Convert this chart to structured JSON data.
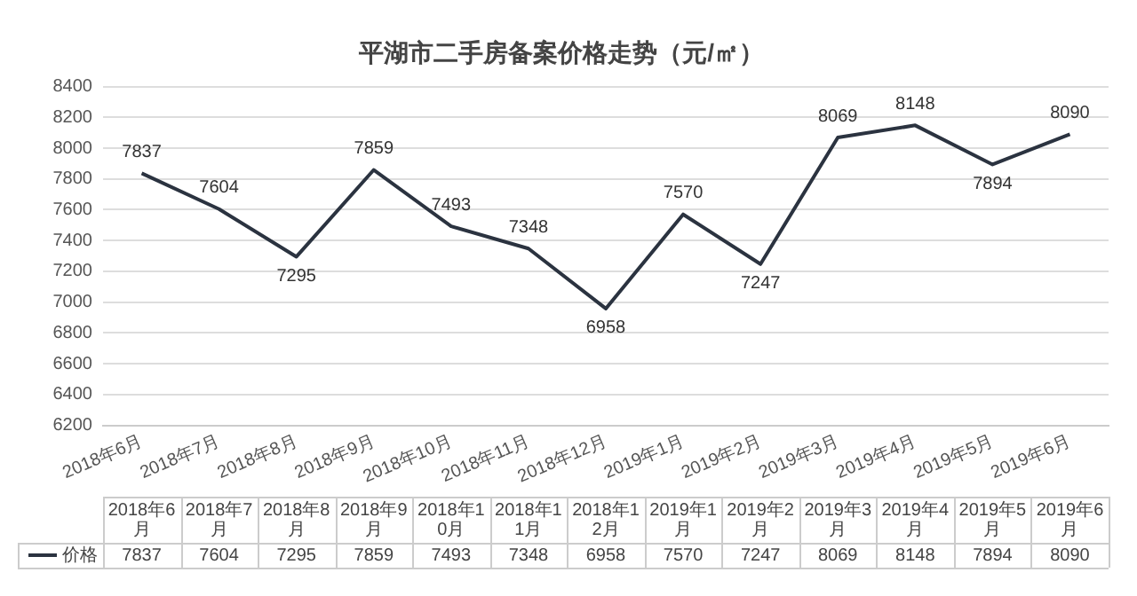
{
  "chart_data": {
    "type": "line",
    "title": "平湖市二手房备案价格走势（元/㎡）",
    "categories": [
      "2018年6月",
      "2018年7月",
      "2018年8月",
      "2018年9月",
      "2018年10月",
      "2018年11月",
      "2018年12月",
      "2019年1月",
      "2019年2月",
      "2019年3月",
      "2019年4月",
      "2019年5月",
      "2019年6月"
    ],
    "series": [
      {
        "name": "价格",
        "color": "#2b3340",
        "values": [
          7837,
          7604,
          7295,
          7859,
          7493,
          7348,
          6958,
          7570,
          7247,
          8069,
          8148,
          7894,
          8090
        ]
      }
    ],
    "annotations": [
      {
        "text": "7837",
        "x": "2018年6月",
        "y": 7837
      },
      {
        "text": "7604",
        "x": "2018年7月",
        "y": 7604
      },
      {
        "text": "7295",
        "x": "2018年8月",
        "y": 7295
      },
      {
        "text": "7859",
        "x": "2018年9月",
        "y": 7859
      },
      {
        "text": "7493",
        "x": "2018年10月",
        "y": 7493
      },
      {
        "text": "7348",
        "x": "2018年11月",
        "y": 7348
      },
      {
        "text": "6958",
        "x": "2018年12月",
        "y": 6958
      },
      {
        "text": "7570",
        "x": "2019年1月",
        "y": 7570
      },
      {
        "text": "7247",
        "x": "2019年2月",
        "y": 7247
      },
      {
        "text": "8069",
        "x": "2019年3月",
        "y": 8069
      },
      {
        "text": "8148",
        "x": "2019年4月",
        "y": 8148
      },
      {
        "text": "7894",
        "x": "2019年5月",
        "y": 7894
      },
      {
        "text": "8090",
        "x": "2019年6月",
        "y": 8090
      }
    ],
    "ylim": [
      6200,
      8400
    ],
    "yticks": [
      6200,
      6400,
      6600,
      6800,
      7000,
      7200,
      7400,
      7600,
      7800,
      8000,
      8200,
      8400
    ],
    "grid": "y",
    "data_labels": true,
    "legend": "bottom",
    "marker": "none",
    "line_style": "solid"
  }
}
